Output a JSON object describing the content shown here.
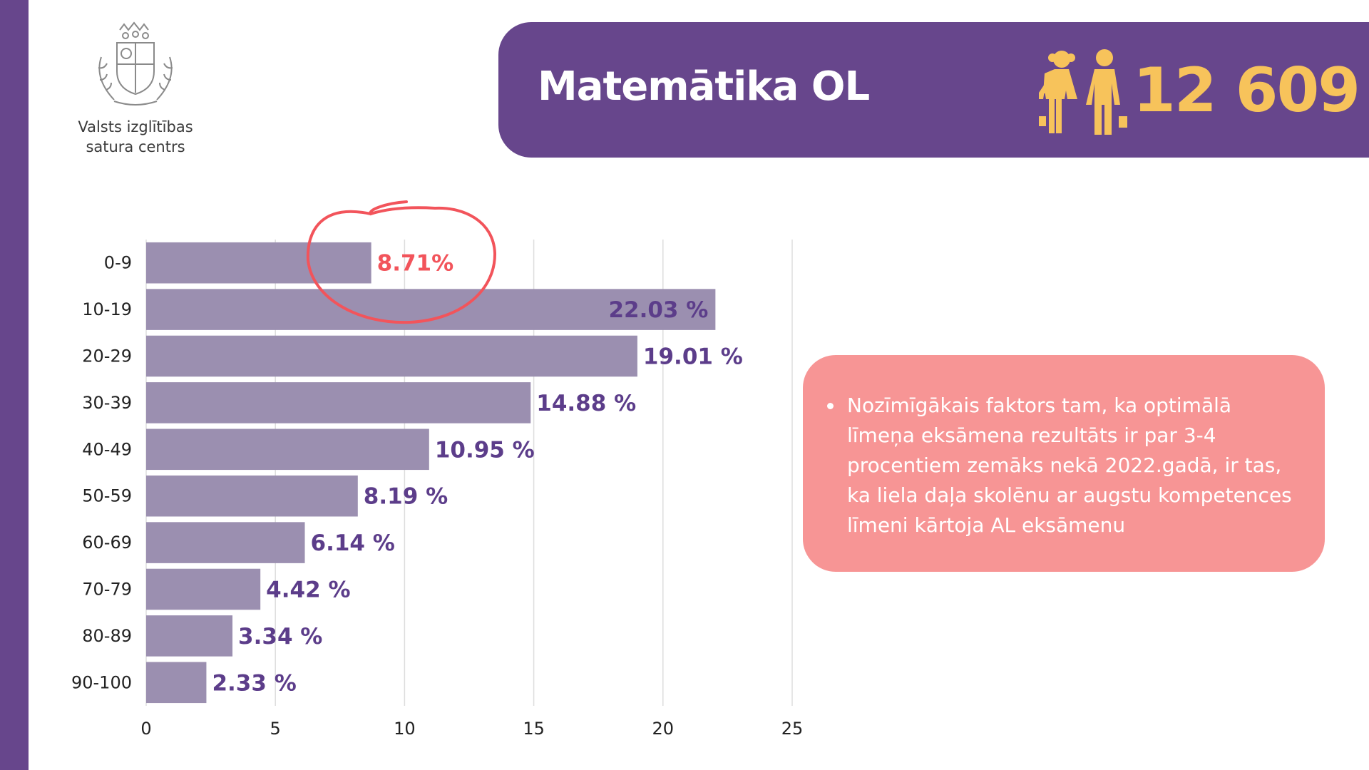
{
  "logo": {
    "org_line1": "Valsts izglītības",
    "org_line2": "satura centrs"
  },
  "header": {
    "title": "Matemātika OL",
    "count": "12 609",
    "icon": "students-icon"
  },
  "colors": {
    "purple": "#67468c",
    "bar": "#9b8fb0",
    "label": "#5c3d8a",
    "highlight": "#f2545b",
    "note_bg": "#f79595",
    "count": "#f7c35b"
  },
  "note": {
    "text": "Nozīmīgākais faktors tam, ka optimālā līmeņa eksāmena rezultāts ir par 3-4 procentiem zemāks nekā 2022.gadā, ir tas, ka liela daļa skolēnu ar augstu kompetences līmeni kārtoja AL eksāmenu"
  },
  "chart_data": {
    "type": "bar",
    "orientation": "horizontal",
    "categories": [
      "0-9",
      "10-19",
      "20-29",
      "30-39",
      "40-49",
      "50-59",
      "60-69",
      "70-79",
      "80-89",
      "90-100"
    ],
    "values": [
      8.71,
      22.03,
      19.01,
      14.88,
      10.95,
      8.19,
      6.14,
      4.42,
      3.34,
      2.33
    ],
    "data_labels": [
      "8.71%",
      "22.03 %",
      "19.01 %",
      "14.88 %",
      "10.95 %",
      "8.19 %",
      "6.14 %",
      "4.42 %",
      "3.34 %",
      "2.33 %"
    ],
    "highlighted_category": "0-9",
    "xlim": [
      0,
      25
    ],
    "xticks": [
      0,
      5,
      10,
      15,
      20,
      25
    ],
    "grid": true,
    "title": "",
    "xlabel": "",
    "ylabel": ""
  }
}
